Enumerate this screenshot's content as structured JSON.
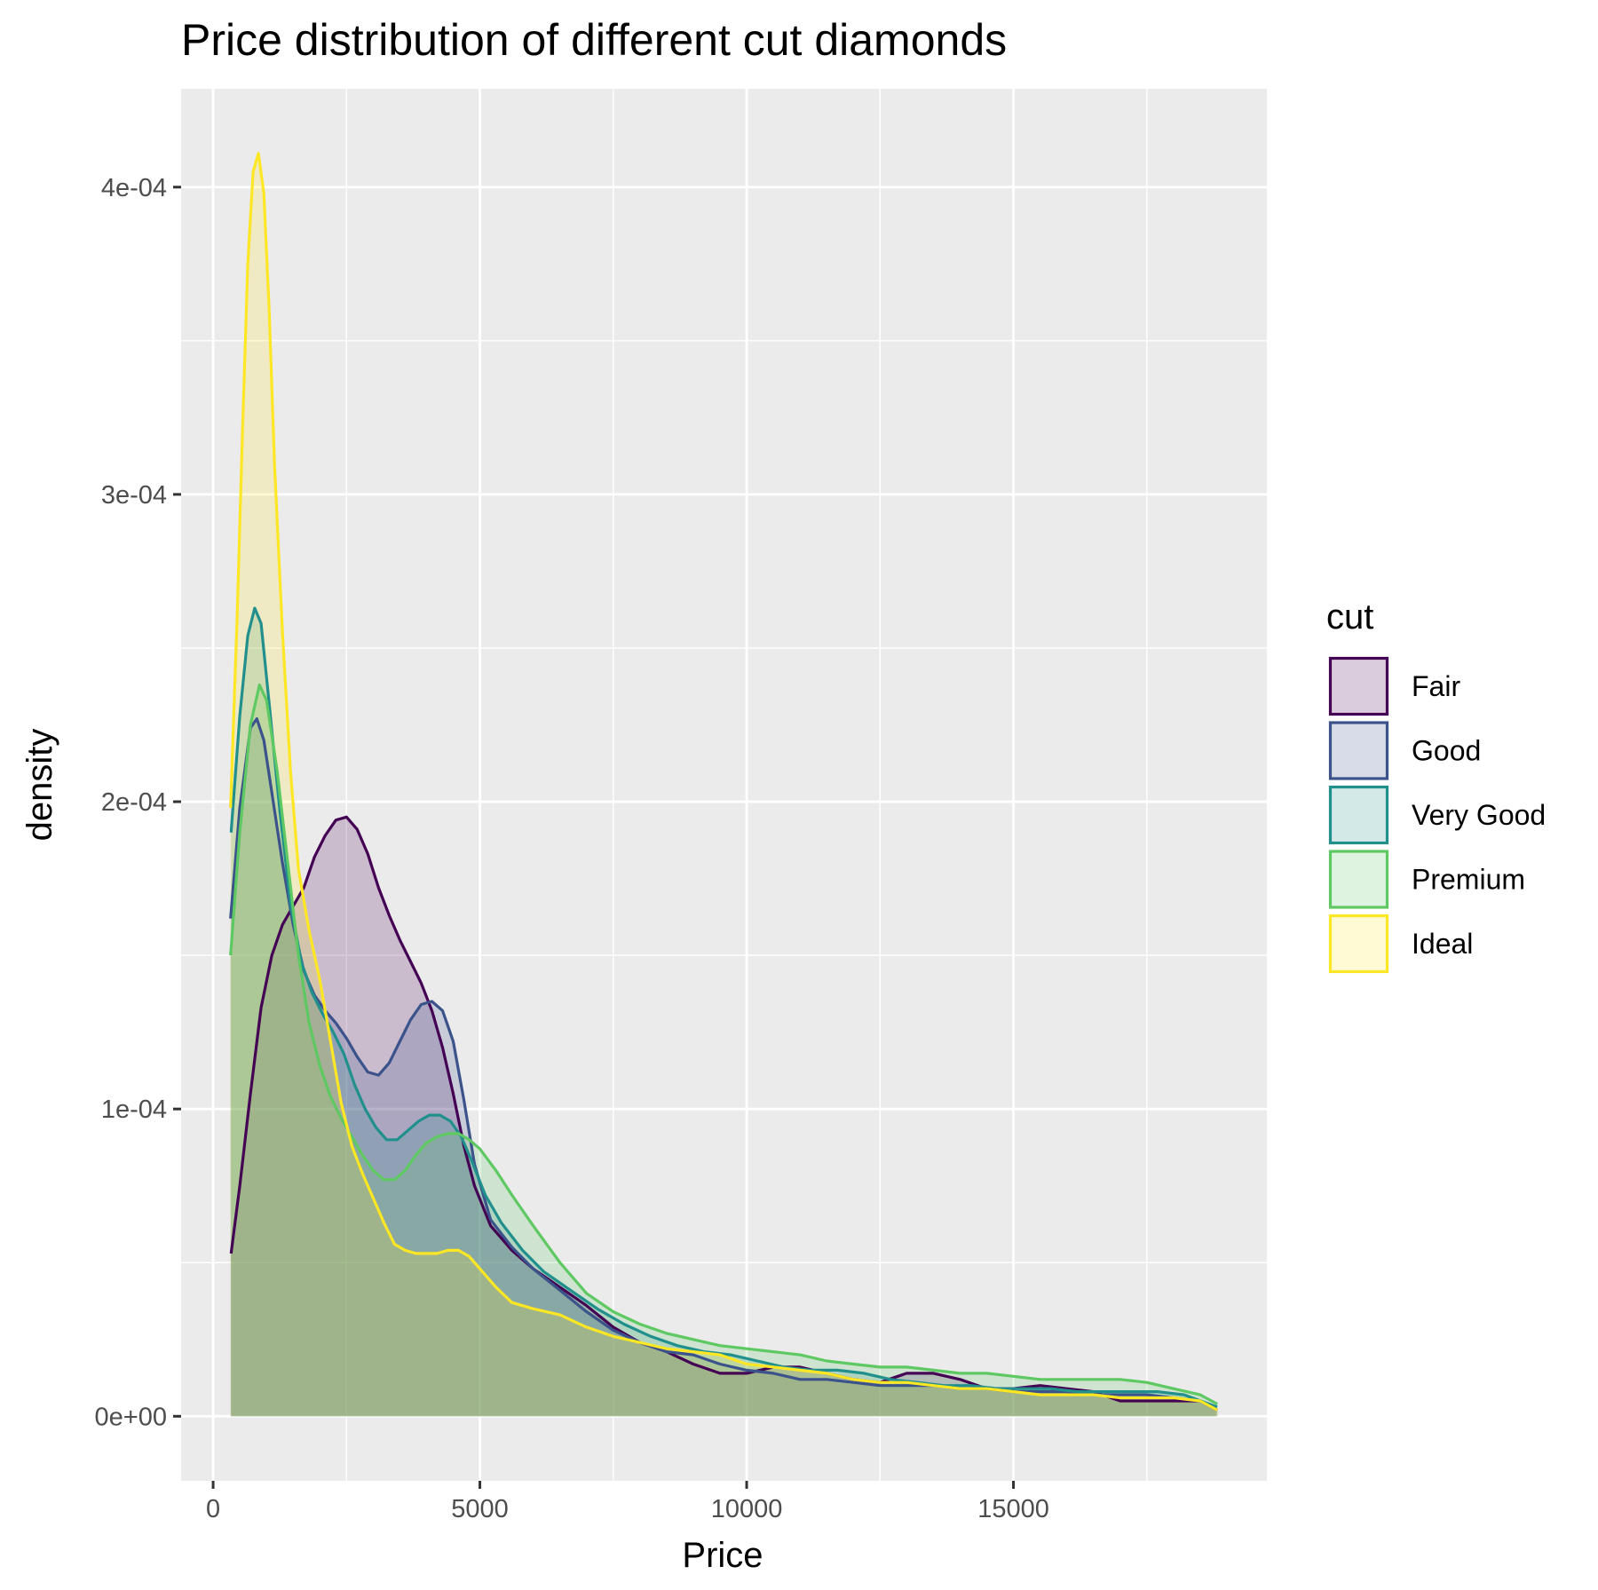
{
  "chart_data": {
    "type": "area",
    "title": "Price distribution of different cut diamonds",
    "xlabel": "Price",
    "ylabel": "density",
    "xlim": [
      -600,
      19750
    ],
    "ylim": [
      -2.1e-05,
      0.000432
    ],
    "x_ticks": [
      {
        "value": 0,
        "label": "0"
      },
      {
        "value": 5000,
        "label": "5000"
      },
      {
        "value": 10000,
        "label": "10000"
      },
      {
        "value": 15000,
        "label": "15000"
      }
    ],
    "x_minor": [
      2500,
      7500,
      12500,
      17500
    ],
    "y_ticks": [
      {
        "value": 0,
        "label": "0e+00"
      },
      {
        "value": 0.0001,
        "label": "1e-04"
      },
      {
        "value": 0.0002,
        "label": "2e-04"
      },
      {
        "value": 0.0003,
        "label": "3e-04"
      },
      {
        "value": 0.0004,
        "label": "4e-04"
      }
    ],
    "y_minor": [
      5e-05,
      0.00015,
      0.00025,
      0.00035
    ],
    "grid": true,
    "panel_background": "#ebebeb",
    "legend": {
      "title": "cut",
      "placement": "right"
    },
    "fill_opacity": 0.2,
    "series": [
      {
        "name": "Fair",
        "color": "#440154",
        "points": [
          [
            337,
            5.3e-05
          ],
          [
            500,
            7.5e-05
          ],
          [
            700,
            0.000105
          ],
          [
            900,
            0.000133
          ],
          [
            1100,
            0.00015
          ],
          [
            1300,
            0.00016
          ],
          [
            1500,
            0.000166
          ],
          [
            1700,
            0.000172
          ],
          [
            1900,
            0.000182
          ],
          [
            2100,
            0.000189
          ],
          [
            2300,
            0.000194
          ],
          [
            2500,
            0.000195
          ],
          [
            2700,
            0.000191
          ],
          [
            2900,
            0.000183
          ],
          [
            3100,
            0.000172
          ],
          [
            3300,
            0.000163
          ],
          [
            3500,
            0.000155
          ],
          [
            3700,
            0.000148
          ],
          [
            3900,
            0.000141
          ],
          [
            4100,
            0.000132
          ],
          [
            4300,
            0.00012
          ],
          [
            4500,
            0.000105
          ],
          [
            4700,
            8.8e-05
          ],
          [
            4900,
            7.5e-05
          ],
          [
            5200,
            6.2e-05
          ],
          [
            5600,
            5.4e-05
          ],
          [
            6000,
            4.8e-05
          ],
          [
            6500,
            4.2e-05
          ],
          [
            7000,
            3.6e-05
          ],
          [
            7500,
            2.9e-05
          ],
          [
            8000,
            2.4e-05
          ],
          [
            8500,
            2.1e-05
          ],
          [
            9000,
            1.7e-05
          ],
          [
            9500,
            1.4e-05
          ],
          [
            10000,
            1.4e-05
          ],
          [
            10500,
            1.6e-05
          ],
          [
            11000,
            1.6e-05
          ],
          [
            11500,
            1.4e-05
          ],
          [
            12000,
            1.2e-05
          ],
          [
            12500,
            1.1e-05
          ],
          [
            13000,
            1.4e-05
          ],
          [
            13500,
            1.4e-05
          ],
          [
            14000,
            1.2e-05
          ],
          [
            14500,
            9e-06
          ],
          [
            15000,
            9e-06
          ],
          [
            15500,
            1e-05
          ],
          [
            16000,
            9e-06
          ],
          [
            16500,
            8e-06
          ],
          [
            17000,
            5e-06
          ],
          [
            17500,
            5e-06
          ],
          [
            18000,
            5e-06
          ],
          [
            18500,
            5e-06
          ],
          [
            18823,
            2e-06
          ]
        ]
      },
      {
        "name": "Good",
        "color": "#3b528b",
        "points": [
          [
            327,
            0.000162
          ],
          [
            500,
            0.000198
          ],
          [
            700,
            0.000224
          ],
          [
            820,
            0.000227
          ],
          [
            950,
            0.00022
          ],
          [
            1100,
            0.000203
          ],
          [
            1300,
            0.00018
          ],
          [
            1500,
            0.00016
          ],
          [
            1700,
            0.000145
          ],
          [
            1900,
            0.000137
          ],
          [
            2100,
            0.000132
          ],
          [
            2300,
            0.000128
          ],
          [
            2500,
            0.000123
          ],
          [
            2700,
            0.000117
          ],
          [
            2900,
            0.000112
          ],
          [
            3100,
            0.000111
          ],
          [
            3300,
            0.000115
          ],
          [
            3500,
            0.000122
          ],
          [
            3700,
            0.000129
          ],
          [
            3900,
            0.000134
          ],
          [
            4100,
            0.000135
          ],
          [
            4300,
            0.000132
          ],
          [
            4500,
            0.000122
          ],
          [
            4700,
            0.000103
          ],
          [
            4900,
            8.2e-05
          ],
          [
            5200,
            6.4e-05
          ],
          [
            5600,
            5.5e-05
          ],
          [
            6000,
            4.8e-05
          ],
          [
            6500,
            4.1e-05
          ],
          [
            7000,
            3.4e-05
          ],
          [
            7500,
            2.8e-05
          ],
          [
            8000,
            2.4e-05
          ],
          [
            8500,
            2.1e-05
          ],
          [
            9000,
            2e-05
          ],
          [
            9500,
            1.7e-05
          ],
          [
            10000,
            1.5e-05
          ],
          [
            10500,
            1.4e-05
          ],
          [
            11000,
            1.2e-05
          ],
          [
            11500,
            1.2e-05
          ],
          [
            12000,
            1.1e-05
          ],
          [
            12500,
            1e-05
          ],
          [
            13000,
            1e-05
          ],
          [
            13500,
            1e-05
          ],
          [
            14000,
            9e-06
          ],
          [
            14500,
            9e-06
          ],
          [
            15000,
            8e-06
          ],
          [
            15500,
            8e-06
          ],
          [
            16000,
            8e-06
          ],
          [
            16500,
            7e-06
          ],
          [
            17000,
            7e-06
          ],
          [
            17500,
            7e-06
          ],
          [
            18000,
            6e-06
          ],
          [
            18500,
            5e-06
          ],
          [
            18788,
            3e-06
          ]
        ]
      },
      {
        "name": "Very Good",
        "color": "#21908c",
        "points": [
          [
            336,
            0.00019
          ],
          [
            500,
            0.000228
          ],
          [
            650,
            0.000254
          ],
          [
            780,
            0.000263
          ],
          [
            900,
            0.000258
          ],
          [
            1050,
            0.000232
          ],
          [
            1250,
            0.000197
          ],
          [
            1450,
            0.000167
          ],
          [
            1650,
            0.000148
          ],
          [
            1850,
            0.000138
          ],
          [
            2050,
            0.000131
          ],
          [
            2250,
            0.000125
          ],
          [
            2450,
            0.000118
          ],
          [
            2650,
            0.000108
          ],
          [
            2850,
            0.0001
          ],
          [
            3050,
            9.4e-05
          ],
          [
            3250,
            9e-05
          ],
          [
            3450,
            9e-05
          ],
          [
            3650,
            9.3e-05
          ],
          [
            3850,
            9.6e-05
          ],
          [
            4050,
            9.8e-05
          ],
          [
            4250,
            9.8e-05
          ],
          [
            4450,
            9.6e-05
          ],
          [
            4650,
            9.1e-05
          ],
          [
            4850,
            8.3e-05
          ],
          [
            5100,
            7.2e-05
          ],
          [
            5400,
            6.3e-05
          ],
          [
            5800,
            5.4e-05
          ],
          [
            6200,
            4.7e-05
          ],
          [
            6700,
            4.1e-05
          ],
          [
            7200,
            3.5e-05
          ],
          [
            7700,
            3e-05
          ],
          [
            8200,
            2.6e-05
          ],
          [
            8700,
            2.3e-05
          ],
          [
            9200,
            2.1e-05
          ],
          [
            9700,
            2e-05
          ],
          [
            10200,
            1.8e-05
          ],
          [
            10700,
            1.6e-05
          ],
          [
            11200,
            1.5e-05
          ],
          [
            11700,
            1.5e-05
          ],
          [
            12200,
            1.4e-05
          ],
          [
            12700,
            1.2e-05
          ],
          [
            13200,
            1.1e-05
          ],
          [
            13700,
            1e-05
          ],
          [
            14200,
            1e-05
          ],
          [
            14700,
            9e-06
          ],
          [
            15200,
            9e-06
          ],
          [
            15700,
            9e-06
          ],
          [
            16200,
            8e-06
          ],
          [
            16700,
            8e-06
          ],
          [
            17200,
            8e-06
          ],
          [
            17700,
            8e-06
          ],
          [
            18200,
            7e-06
          ],
          [
            18818,
            3e-06
          ]
        ]
      },
      {
        "name": "Premium",
        "color": "#5ec962",
        "points": [
          [
            326,
            0.00015
          ],
          [
            500,
            0.00019
          ],
          [
            700,
            0.000225
          ],
          [
            870,
            0.000238
          ],
          [
            1000,
            0.000233
          ],
          [
            1200,
            0.00021
          ],
          [
            1400,
            0.00018
          ],
          [
            1600,
            0.00015
          ],
          [
            1800,
            0.000128
          ],
          [
            2000,
            0.000114
          ],
          [
            2200,
            0.000104
          ],
          [
            2400,
            9.7e-05
          ],
          [
            2600,
            9.1e-05
          ],
          [
            2800,
            8.5e-05
          ],
          [
            3000,
            8e-05
          ],
          [
            3200,
            7.7e-05
          ],
          [
            3400,
            7.7e-05
          ],
          [
            3600,
            8e-05
          ],
          [
            3800,
            8.5e-05
          ],
          [
            4000,
            8.9e-05
          ],
          [
            4200,
            9.1e-05
          ],
          [
            4400,
            9.2e-05
          ],
          [
            4600,
            9.2e-05
          ],
          [
            4800,
            9e-05
          ],
          [
            5000,
            8.7e-05
          ],
          [
            5300,
            8e-05
          ],
          [
            5600,
            7.2e-05
          ],
          [
            6000,
            6.2e-05
          ],
          [
            6500,
            5e-05
          ],
          [
            7000,
            4e-05
          ],
          [
            7500,
            3.4e-05
          ],
          [
            8000,
            3e-05
          ],
          [
            8500,
            2.7e-05
          ],
          [
            9000,
            2.5e-05
          ],
          [
            9500,
            2.3e-05
          ],
          [
            10000,
            2.2e-05
          ],
          [
            10500,
            2.1e-05
          ],
          [
            11000,
            2e-05
          ],
          [
            11500,
            1.8e-05
          ],
          [
            12000,
            1.7e-05
          ],
          [
            12500,
            1.6e-05
          ],
          [
            13000,
            1.6e-05
          ],
          [
            13500,
            1.5e-05
          ],
          [
            14000,
            1.4e-05
          ],
          [
            14500,
            1.4e-05
          ],
          [
            15000,
            1.3e-05
          ],
          [
            15500,
            1.2e-05
          ],
          [
            16000,
            1.2e-05
          ],
          [
            16500,
            1.2e-05
          ],
          [
            17000,
            1.2e-05
          ],
          [
            17500,
            1.1e-05
          ],
          [
            18000,
            9e-06
          ],
          [
            18500,
            7e-06
          ],
          [
            18823,
            4e-06
          ]
        ]
      },
      {
        "name": "Ideal",
        "color": "#fde725",
        "points": [
          [
            326,
            0.000198
          ],
          [
            450,
            0.00026
          ],
          [
            550,
            0.00032
          ],
          [
            650,
            0.000375
          ],
          [
            750,
            0.000405
          ],
          [
            850,
            0.000411
          ],
          [
            950,
            0.000398
          ],
          [
            1050,
            0.00036
          ],
          [
            1150,
            0.00031
          ],
          [
            1300,
            0.000255
          ],
          [
            1450,
            0.00021
          ],
          [
            1600,
            0.000178
          ],
          [
            1800,
            0.000158
          ],
          [
            2000,
            0.000142
          ],
          [
            2200,
            0.000122
          ],
          [
            2400,
            0.000102
          ],
          [
            2600,
            8.8e-05
          ],
          [
            2800,
            7.9e-05
          ],
          [
            3000,
            7.1e-05
          ],
          [
            3200,
            6.3e-05
          ],
          [
            3400,
            5.6e-05
          ],
          [
            3600,
            5.4e-05
          ],
          [
            3800,
            5.3e-05
          ],
          [
            4000,
            5.3e-05
          ],
          [
            4200,
            5.3e-05
          ],
          [
            4400,
            5.4e-05
          ],
          [
            4600,
            5.4e-05
          ],
          [
            4800,
            5.2e-05
          ],
          [
            5000,
            4.8e-05
          ],
          [
            5300,
            4.2e-05
          ],
          [
            5600,
            3.7e-05
          ],
          [
            6000,
            3.5e-05
          ],
          [
            6500,
            3.3e-05
          ],
          [
            7000,
            2.9e-05
          ],
          [
            7500,
            2.6e-05
          ],
          [
            8000,
            2.4e-05
          ],
          [
            8500,
            2.2e-05
          ],
          [
            9000,
            2.1e-05
          ],
          [
            9500,
            2e-05
          ],
          [
            10000,
            1.7e-05
          ],
          [
            10500,
            1.6e-05
          ],
          [
            11000,
            1.5e-05
          ],
          [
            11500,
            1.4e-05
          ],
          [
            12000,
            1.2e-05
          ],
          [
            12500,
            1.1e-05
          ],
          [
            13000,
            1.1e-05
          ],
          [
            13500,
            1e-05
          ],
          [
            14000,
            9e-06
          ],
          [
            14500,
            9e-06
          ],
          [
            15000,
            8e-06
          ],
          [
            15500,
            7e-06
          ],
          [
            16000,
            7e-06
          ],
          [
            16500,
            7e-06
          ],
          [
            17000,
            6e-06
          ],
          [
            17500,
            6e-06
          ],
          [
            18000,
            6e-06
          ],
          [
            18500,
            5e-06
          ],
          [
            18823,
            2e-06
          ]
        ]
      }
    ]
  }
}
